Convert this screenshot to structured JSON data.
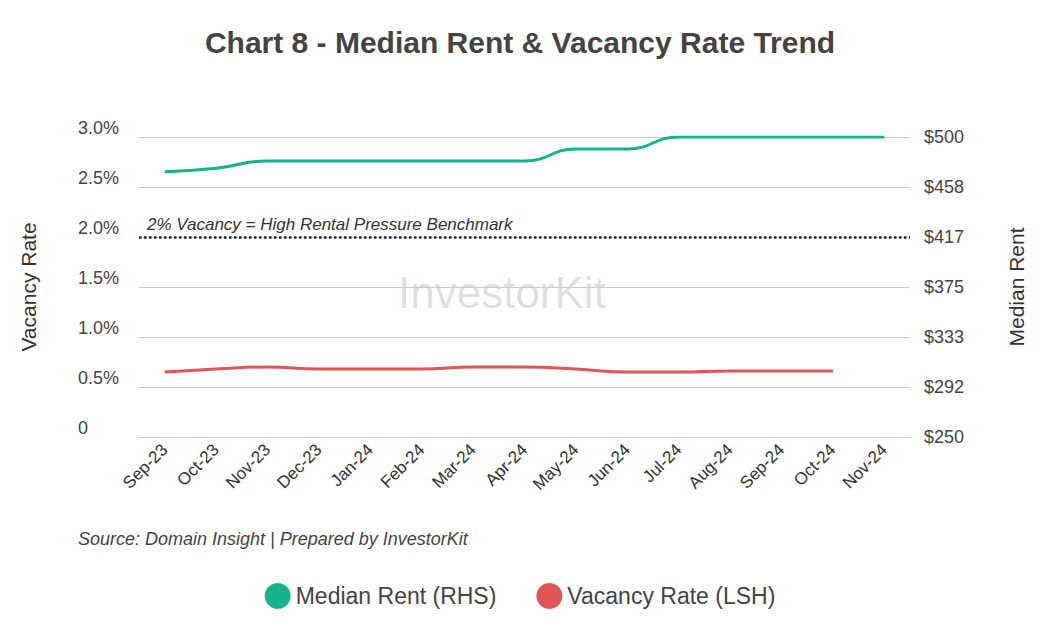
{
  "chart_data": {
    "type": "line",
    "title": "Chart 8 - Median Rent & Vacancy Rate Trend",
    "source": "Source: Domain Insight | Prepared by InvestorKit",
    "watermark": "InvestorKit",
    "categories": [
      "Sep-23",
      "Oct-23",
      "Nov-23",
      "Dec-23",
      "Jan-24",
      "Feb-24",
      "Mar-24",
      "Apr-24",
      "May-24",
      "Jun-24",
      "Jul-24",
      "Aug-24",
      "Sep-24",
      "Oct-24",
      "Nov-24"
    ],
    "y_label": "Vacancy Rate",
    "y2_label": "Median Rent",
    "ylim": [
      0,
      3
    ],
    "yticks": [
      0,
      {
        "value": 0.5,
        "label": "0.5%"
      },
      {
        "value": 1,
        "label": "1.0%"
      },
      {
        "value": 1.5,
        "label": "1.5%"
      },
      {
        "value": 2,
        "label": "2.0%"
      },
      {
        "value": 2.5,
        "label": "2.5%"
      },
      {
        "value": 3,
        "label": "3.0%"
      }
    ],
    "y2lim": [
      250,
      500
    ],
    "y2ticks": [
      {
        "value": 250,
        "label": "$250"
      },
      {
        "value": 291.67,
        "label": "$292"
      },
      {
        "value": 333.33,
        "label": "$333"
      },
      {
        "value": 375,
        "label": "$375"
      },
      {
        "value": 416.67,
        "label": "$417"
      },
      {
        "value": 458.33,
        "label": "$458"
      },
      {
        "value": 500,
        "label": "$500"
      }
    ],
    "grid": true,
    "legend": "bottom",
    "annotations": [
      {
        "text": "2% Vacancy = High Rental Pressure Benchmark",
        "y": 2,
        "line_style": "dotted"
      }
    ],
    "series": [
      {
        "name": "Median Rent (RHS)",
        "color": "#14b38a",
        "axis": "y2",
        "values": [
          471,
          474,
          480,
          480,
          480,
          480,
          480,
          480,
          490,
          490,
          500,
          500,
          500,
          500,
          500
        ]
      },
      {
        "name": "Vacancy Rate (LSH)",
        "color": "#e05555",
        "values": [
          0.65,
          0.68,
          0.7,
          0.68,
          0.68,
          0.68,
          0.7,
          0.7,
          0.68,
          0.65,
          0.65,
          0.66,
          0.66,
          0.66,
          null
        ]
      }
    ]
  }
}
